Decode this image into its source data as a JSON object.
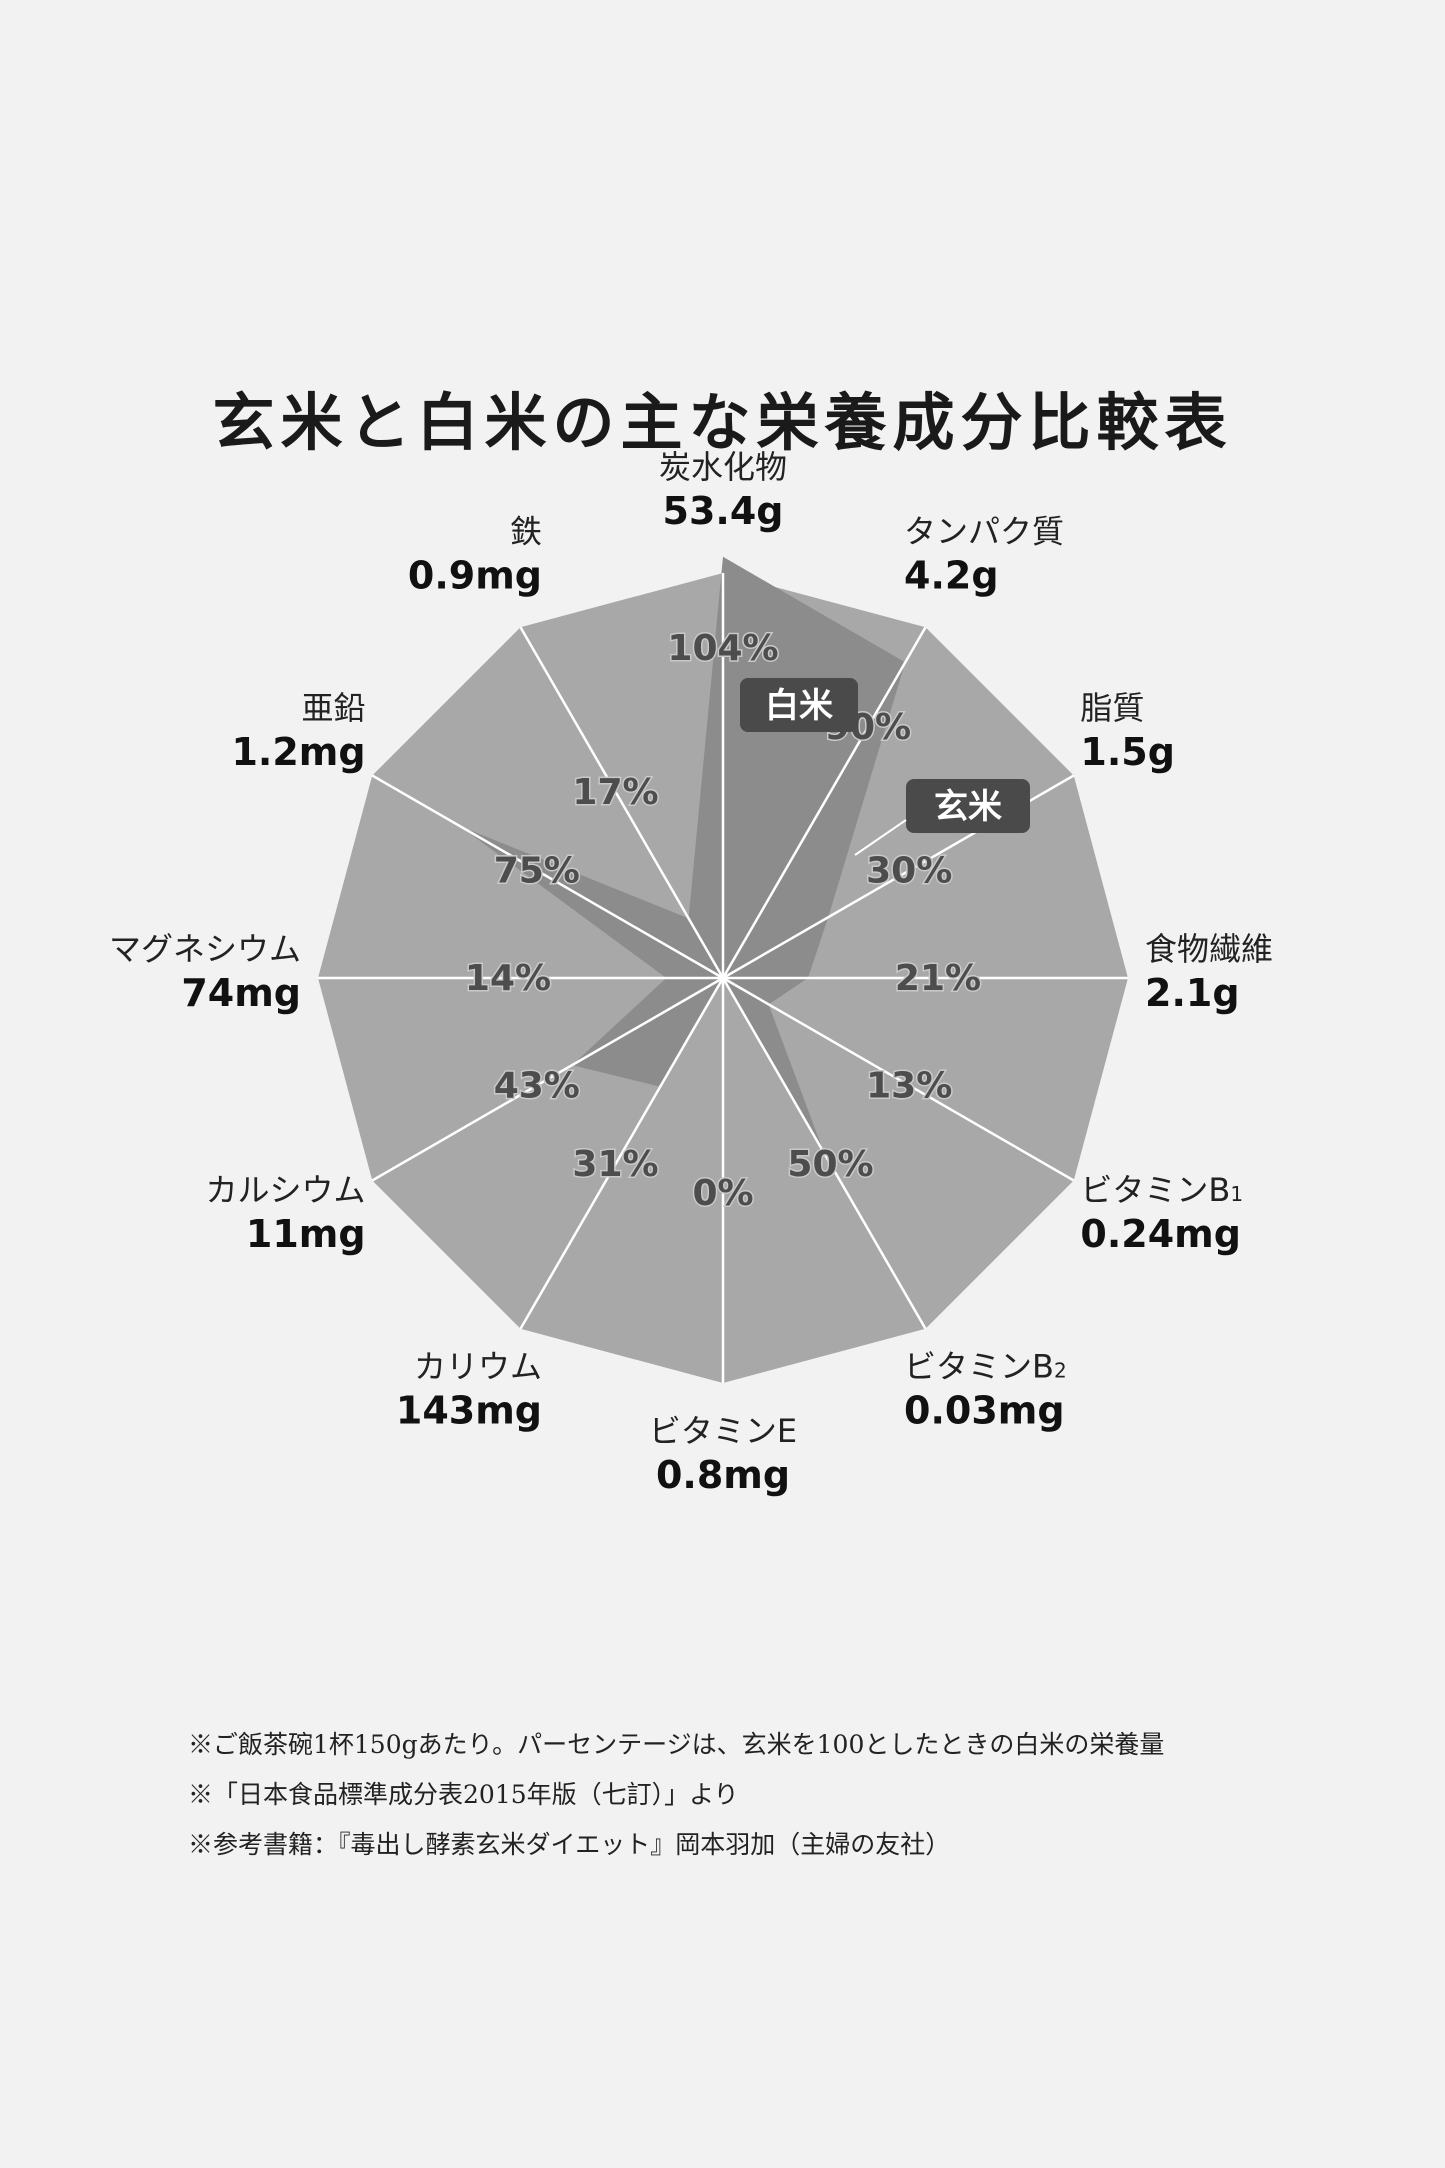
{
  "chart_data": {
    "type": "radar",
    "title": "玄米と白米の主な栄養成分比較表",
    "series": [
      {
        "name": "玄米",
        "max_value_percent": 100,
        "color": "#a8a8a8"
      },
      {
        "name": "白米",
        "color": "#8c8c8c"
      }
    ],
    "categories": [
      {
        "name": "炭水化物",
        "value": "53.4g",
        "sub": "",
        "percent": 104,
        "percent_label": "104%"
      },
      {
        "name": "タンパク質",
        "value": "4.2g",
        "sub": "",
        "percent": 90,
        "percent_label": "90%"
      },
      {
        "name": "脂質",
        "value": "1.5g",
        "sub": "",
        "percent": 30,
        "percent_label": "30%"
      },
      {
        "name": "食物繊維",
        "value": "2.1g",
        "sub": "",
        "percent": 21,
        "percent_label": "21%"
      },
      {
        "name": "ビタミンB",
        "value": "0.24mg",
        "sub": "1",
        "percent": 13,
        "percent_label": "13%"
      },
      {
        "name": "ビタミンB",
        "value": "0.03mg",
        "sub": "2",
        "percent": 50,
        "percent_label": "50%"
      },
      {
        "name": "ビタミンE",
        "value": "0.8mg",
        "sub": "",
        "percent": 0,
        "percent_label": "0%"
      },
      {
        "name": "カリウム",
        "value": "143mg",
        "sub": "",
        "percent": 31,
        "percent_label": "31%"
      },
      {
        "name": "カルシウム",
        "value": "11mg",
        "sub": "",
        "percent": 43,
        "percent_label": "43%"
      },
      {
        "name": "マグネシウム",
        "value": "74mg",
        "sub": "",
        "percent": 14,
        "percent_label": "14%"
      },
      {
        "name": "亜鉛",
        "value": "1.2mg",
        "sub": "",
        "percent": 75,
        "percent_label": "75%"
      },
      {
        "name": "鉄",
        "value": "0.9mg",
        "sub": "",
        "percent": 17,
        "percent_label": "17%"
      }
    ],
    "legend": [
      "白米",
      "玄米"
    ]
  },
  "notes": [
    "※ご飯茶碗1杯150gあたり。パーセンテージは、玄米を100としたときの白米の栄養量",
    "※「日本食品標準成分表2015年版（七訂）」より",
    "※参考書籍：『毒出し酵素玄米ダイエット』岡本羽加（主婦の友社）"
  ]
}
